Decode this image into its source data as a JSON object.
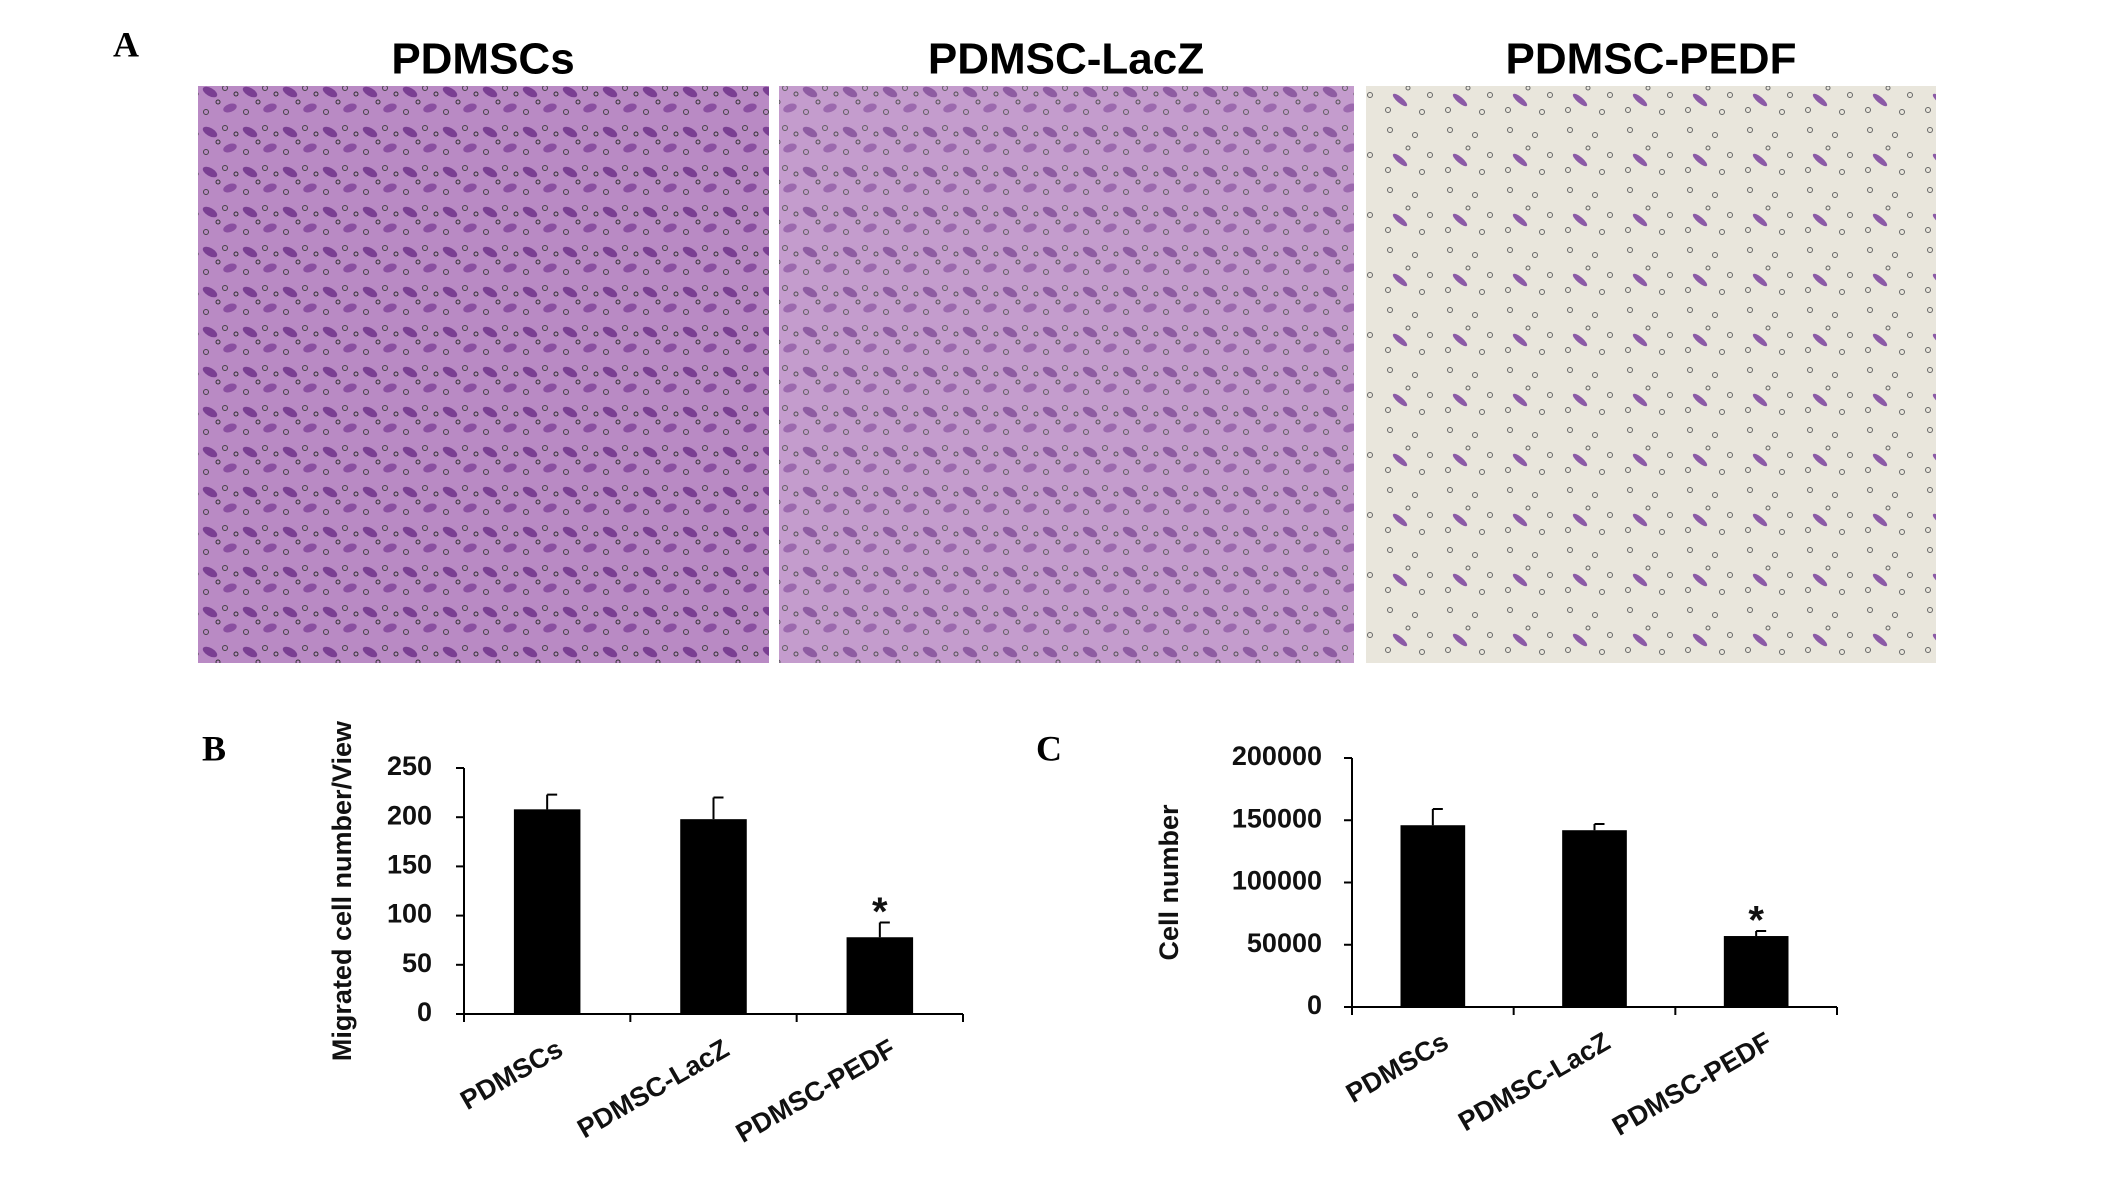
{
  "figure": {
    "panel_labels": [
      "A",
      "B",
      "C"
    ],
    "image_titles": [
      "PDMSCs",
      "PDMSC-LacZ",
      "PDMSC-PEDF"
    ]
  },
  "chart_data": [
    {
      "type": "bar",
      "y_label": "Migrated cell number/View",
      "categories": [
        "PDMSCs",
        "PDMSC-LacZ",
        "PDMSC-PEDF"
      ],
      "values": [
        208,
        198,
        78
      ],
      "errors": [
        15,
        22,
        15
      ],
      "color": "#000000",
      "ylim": [
        0,
        250
      ],
      "yticks": [
        0,
        50,
        100,
        150,
        200,
        250
      ],
      "annotations": [
        {
          "text": "*",
          "category": "PDMSC-PEDF"
        }
      ]
    },
    {
      "type": "bar",
      "y_label": "Cell number",
      "categories": [
        "PDMSCs",
        "PDMSC-LacZ",
        "PDMSC-PEDF"
      ],
      "values": [
        146000,
        142000,
        57000
      ],
      "errors": [
        13000,
        5000,
        4000
      ],
      "color": "#000000",
      "ylim": [
        0,
        200000
      ],
      "yticks": [
        0,
        50000,
        100000,
        150000,
        200000
      ],
      "annotations": [
        {
          "text": "*",
          "category": "PDMSC-PEDF"
        }
      ]
    }
  ]
}
